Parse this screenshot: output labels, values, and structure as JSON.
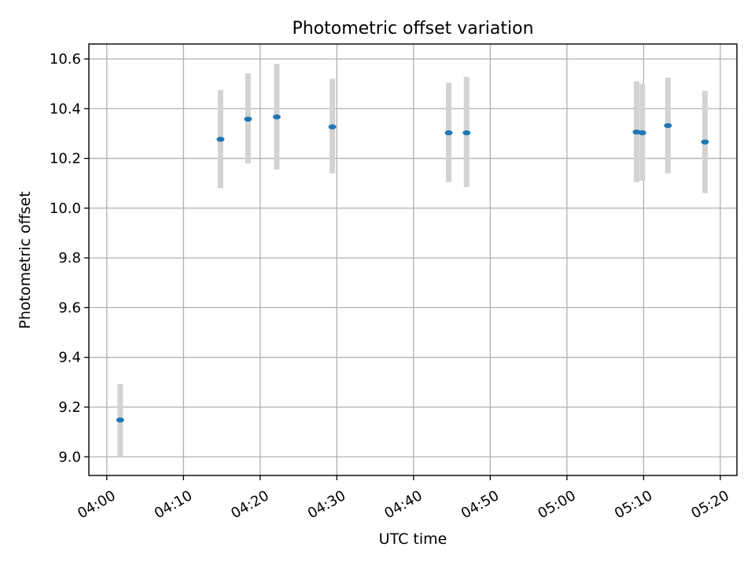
{
  "chart_data": {
    "type": "scatter",
    "title": "Photometric offset variation",
    "xlabel": "UTC time",
    "ylabel": "Photometric offset",
    "x_ticks": [
      "04:00",
      "04:10",
      "04:20",
      "04:30",
      "04:40",
      "04:50",
      "05:00",
      "05:10",
      "05:20"
    ],
    "y_ticks": [
      "9.0",
      "9.2",
      "9.4",
      "9.6",
      "9.8",
      "10.0",
      "10.2",
      "10.4",
      "10.6"
    ],
    "xlim": [
      "03:57:40",
      "05:22:10"
    ],
    "ylim": [
      8.925,
      10.66
    ],
    "grid": true,
    "series": [
      {
        "x": [
          "04:01:45",
          "04:14:50",
          "04:18:25",
          "04:22:10",
          "04:29:25",
          "04:44:35",
          "04:46:55",
          "05:09:05",
          "05:09:50",
          "05:13:10",
          "05:18:00"
        ],
        "y": [
          9.148,
          10.277,
          10.358,
          10.367,
          10.327,
          10.303,
          10.303,
          10.306,
          10.303,
          10.332,
          10.266
        ],
        "err_low": [
          9.0,
          10.08,
          10.18,
          10.155,
          10.14,
          10.105,
          10.085,
          10.105,
          10.11,
          10.14,
          10.06
        ],
        "err_high": [
          9.293,
          10.475,
          10.542,
          10.58,
          10.52,
          10.505,
          10.528,
          10.51,
          10.5,
          10.525,
          10.472
        ]
      }
    ],
    "colors": {
      "points": "#1f77b4",
      "errorbars": "#d3d3d3",
      "grid": "#b0b0b0"
    }
  }
}
